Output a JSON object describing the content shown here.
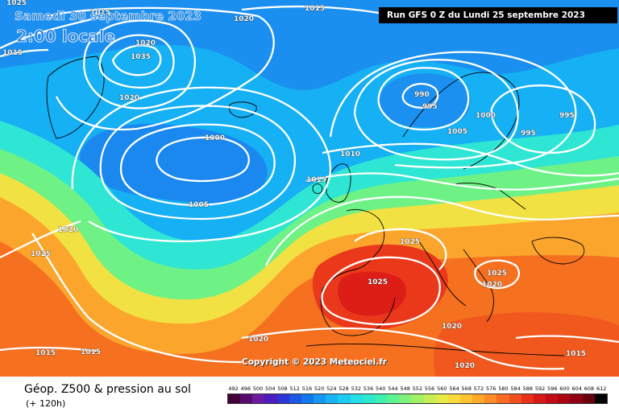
{
  "header": {
    "date": "Samedi 30 septembre 2023",
    "time": "2:00 locale",
    "run_info": "Run GFS 0 Z du Lundi 25 septembre 2023"
  },
  "copyright": "Copyright © 2023 Meteociel.fr",
  "footer": {
    "title": "Géop. Z500 & pression au sol",
    "subtitle": "(+ 120h)"
  },
  "isobar_labels": [
    "1025",
    "1015",
    "1020",
    "1015",
    "1015",
    "1020",
    "1035",
    "1020",
    "1000",
    "1005",
    "990",
    "995",
    "1005",
    "1000",
    "995",
    "995",
    "1010",
    "1015",
    "1020",
    "1025",
    "1025",
    "1025",
    "1025",
    "1020",
    "1020",
    "1015",
    "1015",
    "1020",
    "1020",
    "1015"
  ],
  "legend": {
    "values": [
      "492",
      "496",
      "500",
      "504",
      "508",
      "512",
      "516",
      "520",
      "524",
      "528",
      "532",
      "536",
      "540",
      "544",
      "548",
      "552",
      "556",
      "560",
      "564",
      "568",
      "572",
      "576",
      "580",
      "584",
      "588",
      "592",
      "596",
      "600",
      "604",
      "608",
      "612"
    ],
    "colors": [
      "#420039",
      "#5a0a6e",
      "#6a1da1",
      "#4d1dbf",
      "#2d36d6",
      "#1c58e6",
      "#1178ee",
      "#1597f2",
      "#18b3f4",
      "#1ccbf2",
      "#22dfe8",
      "#2ee8cf",
      "#3ef0b0",
      "#5cf393",
      "#7ef27a",
      "#a2f063",
      "#c6ee52",
      "#e6ea46",
      "#f8d93c",
      "#fdc232",
      "#fea82c",
      "#fd8c27",
      "#f96c22",
      "#f24e1e",
      "#e8301a",
      "#d91818",
      "#c50c16",
      "#ad0414",
      "#8e0012",
      "#6a000e",
      "#000000"
    ],
    "colors_note": "geopotential 500hPa scale, dam"
  }
}
